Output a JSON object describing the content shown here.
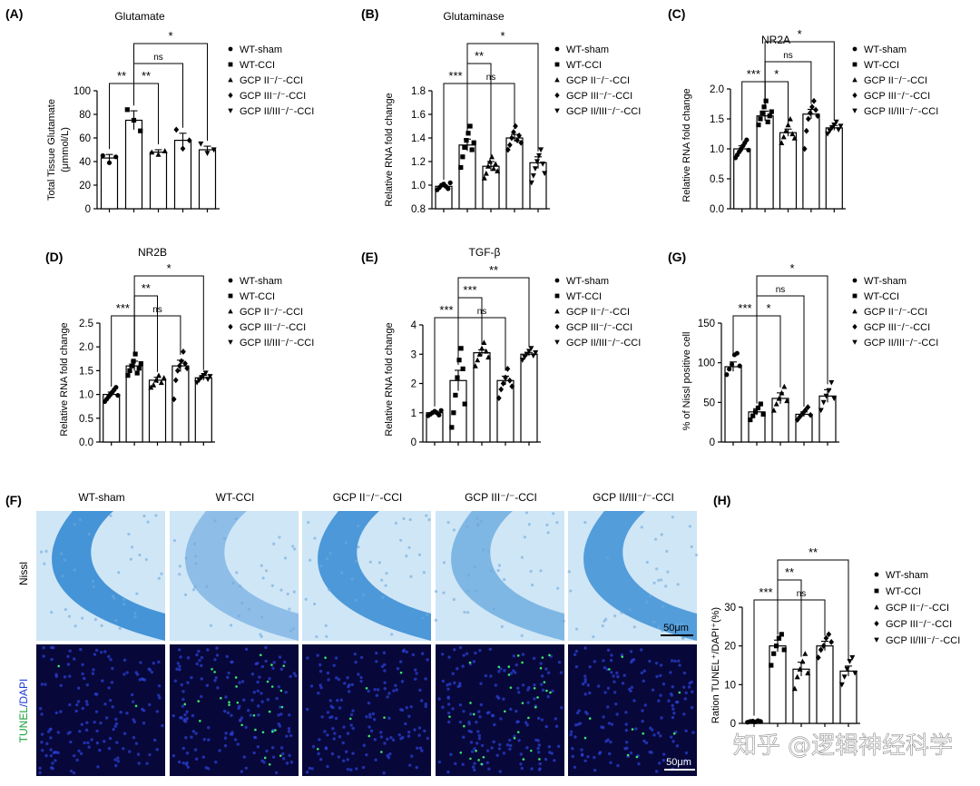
{
  "legend_groups": [
    "WT-sham",
    "WT-CCI",
    "GCP II⁻/⁻-CCI",
    "GCP III⁻/⁻-CCI",
    "GCP II/III⁻/⁻-CCI"
  ],
  "chart_data": [
    {
      "id": "A",
      "panel_label": "(A)",
      "type": "bar",
      "title": "Glutamate",
      "ylabel": "Total Tissue Glutamate",
      "ylabel2": "(μmmol/L)",
      "ylim": [
        0,
        100
      ],
      "yticks": [
        0,
        20,
        40,
        60,
        80,
        100
      ],
      "tick_decimals": 0,
      "categories": [
        "WT-sham",
        "WT-CCI",
        "GCP II-/--CCI",
        "GCP III-/--CCI",
        "GCP II/III-/--CCI"
      ],
      "values": [
        43,
        75,
        48,
        58,
        50
      ],
      "errors": [
        3,
        8,
        2,
        6,
        3
      ],
      "points": [
        [
          45,
          39,
          44
        ],
        [
          84,
          75,
          66
        ],
        [
          48,
          46,
          49
        ],
        [
          67,
          51,
          58
        ],
        [
          55,
          47,
          50
        ]
      ],
      "sig": [
        {
          "from": 0,
          "to": 1,
          "label": "**",
          "level": 0
        },
        {
          "from": 1,
          "to": 2,
          "label": "**",
          "level": 0
        },
        {
          "from": 1,
          "to": 3,
          "label": "ns",
          "level": 1
        },
        {
          "from": 1,
          "to": 4,
          "label": "*",
          "level": 2
        }
      ]
    },
    {
      "id": "B",
      "panel_label": "(B)",
      "type": "bar",
      "title": "Glutaminase",
      "ylabel": "Relative RNA fold change",
      "ylim": [
        0.8,
        1.8
      ],
      "yticks": [
        0.8,
        1.0,
        1.2,
        1.4,
        1.6,
        1.8
      ],
      "tick_decimals": 1,
      "categories": [
        "WT-sham",
        "WT-CCI",
        "GCP II-/--CCI",
        "GCP III-/--CCI",
        "GCP II/III-/--CCI"
      ],
      "values": [
        0.99,
        1.34,
        1.16,
        1.4,
        1.19
      ],
      "errors": [
        0.01,
        0.05,
        0.04,
        0.03,
        0.05
      ],
      "points": [
        [
          0.96,
          0.98,
          1.0,
          1.01,
          0.99,
          0.97,
          1.02
        ],
        [
          1.15,
          1.24,
          1.32,
          1.38,
          1.44,
          1.5,
          1.3,
          1.36
        ],
        [
          1.06,
          1.1,
          1.16,
          1.2,
          1.24,
          1.14,
          1.18,
          1.12
        ],
        [
          1.3,
          1.34,
          1.4,
          1.45,
          1.5,
          1.38,
          1.42,
          1.36
        ],
        [
          1.02,
          1.08,
          1.14,
          1.2,
          1.25,
          1.3,
          1.18,
          1.1
        ]
      ],
      "sig": [
        {
          "from": 0,
          "to": 1,
          "label": "***",
          "level": 0
        },
        {
          "from": 1,
          "to": 3,
          "label": "ns",
          "level": 0
        },
        {
          "from": 1,
          "to": 2,
          "label": "**",
          "level": 1
        },
        {
          "from": 1,
          "to": 4,
          "label": "*",
          "level": 2
        }
      ]
    },
    {
      "id": "C",
      "panel_label": "(C)",
      "type": "bar",
      "title": "NR2A",
      "ylabel": "Relative RNA fold change",
      "ylim": [
        0,
        2.0
      ],
      "yticks": [
        0,
        0.5,
        1.0,
        1.5,
        2.0
      ],
      "tick_decimals": 1,
      "categories": [
        "WT-sham",
        "WT-CCI",
        "GCP II-/--CCI",
        "GCP III-/--CCI",
        "GCP II/III-/--CCI"
      ],
      "values": [
        1.0,
        1.55,
        1.27,
        1.58,
        1.35
      ],
      "errors": [
        0.05,
        0.08,
        0.06,
        0.08,
        0.04
      ],
      "points": [
        [
          0.85,
          0.9,
          0.95,
          1.0,
          1.05,
          1.1,
          1.15,
          0.98
        ],
        [
          1.4,
          1.5,
          1.6,
          1.7,
          1.8,
          1.45,
          1.55,
          1.62
        ],
        [
          1.1,
          1.2,
          1.3,
          1.4,
          1.5,
          1.25,
          1.18
        ],
        [
          1.0,
          1.3,
          1.5,
          1.6,
          1.7,
          1.8,
          1.65,
          1.55
        ],
        [
          1.25,
          1.3,
          1.35,
          1.4,
          1.45,
          1.32,
          1.38
        ]
      ],
      "sig": [
        {
          "from": 0,
          "to": 1,
          "label": "***",
          "level": 0
        },
        {
          "from": 1,
          "to": 2,
          "label": "*",
          "level": 0
        },
        {
          "from": 1,
          "to": 3,
          "label": "ns",
          "level": 1
        },
        {
          "from": 1,
          "to": 4,
          "label": "*",
          "level": 2
        }
      ]
    },
    {
      "id": "D",
      "panel_label": "(D)",
      "type": "bar",
      "title": "NR2B",
      "ylabel": "Relative RNA fold change",
      "ylim": [
        0,
        2.5
      ],
      "yticks": [
        0,
        0.5,
        1.0,
        1.5,
        2.0,
        2.5
      ],
      "tick_decimals": 1,
      "categories": [
        "WT-sham",
        "WT-CCI",
        "GCP II-/--CCI",
        "GCP III-/--CCI",
        "GCP II/III-/--CCI"
      ],
      "values": [
        1.0,
        1.6,
        1.3,
        1.6,
        1.35
      ],
      "errors": [
        0.05,
        0.1,
        0.06,
        0.12,
        0.05
      ],
      "points": [
        [
          0.85,
          0.9,
          0.95,
          1.0,
          1.05,
          1.1,
          1.15,
          0.98
        ],
        [
          1.4,
          1.5,
          1.6,
          1.7,
          1.85,
          1.45,
          1.55,
          1.65
        ],
        [
          1.15,
          1.2,
          1.3,
          1.4,
          1.25,
          1.35
        ],
        [
          0.9,
          1.3,
          1.5,
          1.6,
          1.7,
          1.9,
          1.65,
          1.55
        ],
        [
          1.25,
          1.3,
          1.35,
          1.4,
          1.45,
          1.32,
          1.38
        ]
      ],
      "sig": [
        {
          "from": 0,
          "to": 1,
          "label": "***",
          "level": 0
        },
        {
          "from": 1,
          "to": 3,
          "label": "ns",
          "level": 0
        },
        {
          "from": 1,
          "to": 2,
          "label": "**",
          "level": 1
        },
        {
          "from": 1,
          "to": 4,
          "label": "*",
          "level": 2
        }
      ]
    },
    {
      "id": "E",
      "panel_label": "(E)",
      "type": "bar",
      "title": "TGF-β",
      "ylabel": "Relative RNA fold change",
      "ylim": [
        0,
        4
      ],
      "yticks": [
        0,
        1,
        2,
        3,
        4
      ],
      "tick_decimals": 0,
      "categories": [
        "WT-sham",
        "WT-CCI",
        "GCP II-/--CCI",
        "GCP III-/--CCI",
        "GCP II/III-/--CCI"
      ],
      "values": [
        1.0,
        2.1,
        3.05,
        2.1,
        3.0
      ],
      "errors": [
        0.03,
        0.35,
        0.1,
        0.15,
        0.06
      ],
      "points": [
        [
          0.9,
          0.95,
          1.0,
          1.05,
          1.0,
          0.92,
          1.08
        ],
        [
          0.5,
          1.0,
          1.6,
          2.2,
          2.8,
          3.2,
          2.5,
          1.3
        ],
        [
          2.6,
          2.8,
          3.0,
          3.2,
          3.4,
          3.1,
          2.9
        ],
        [
          1.5,
          1.8,
          2.0,
          2.2,
          2.5,
          2.1,
          1.9
        ],
        [
          2.8,
          2.9,
          3.0,
          3.1,
          3.2,
          2.95,
          3.05
        ]
      ],
      "sig": [
        {
          "from": 0,
          "to": 1,
          "label": "***",
          "level": 0
        },
        {
          "from": 1,
          "to": 3,
          "label": "ns",
          "level": 0
        },
        {
          "from": 1,
          "to": 2,
          "label": "***",
          "level": 1
        },
        {
          "from": 1,
          "to": 4,
          "label": "**",
          "level": 2
        }
      ]
    },
    {
      "id": "G",
      "panel_label": "(G)",
      "type": "bar",
      "title": "",
      "ylabel": "% of Nissl positive cell",
      "ylim": [
        0,
        150
      ],
      "yticks": [
        0,
        50,
        100,
        150
      ],
      "tick_decimals": 0,
      "categories": [
        "WT-sham",
        "WT-CCI",
        "GCP II-/--CCI",
        "GCP III-/--CCI",
        "GCP II/III-/--CCI"
      ],
      "values": [
        95,
        38,
        55,
        35,
        58
      ],
      "errors": [
        6,
        4,
        7,
        3,
        8
      ],
      "points": [
        [
          85,
          92,
          98,
          110,
          112,
          96
        ],
        [
          28,
          33,
          38,
          43,
          48,
          35
        ],
        [
          40,
          48,
          55,
          62,
          70,
          52
        ],
        [
          28,
          32,
          36,
          40,
          44,
          34
        ],
        [
          40,
          50,
          58,
          65,
          75,
          55
        ]
      ],
      "sig": [
        {
          "from": 0,
          "to": 1,
          "label": "***",
          "level": 0
        },
        {
          "from": 1,
          "to": 2,
          "label": "*",
          "level": 0
        },
        {
          "from": 1,
          "to": 3,
          "label": "ns",
          "level": 1
        },
        {
          "from": 1,
          "to": 4,
          "label": "*",
          "level": 2
        }
      ]
    },
    {
      "id": "H",
      "panel_label": "(H)",
      "type": "bar",
      "title": "",
      "ylabel": "Ration TUNEL⁺/DAPI⁺(%)",
      "ylim": [
        0,
        30
      ],
      "yticks": [
        0,
        10,
        20,
        30
      ],
      "tick_decimals": 0,
      "categories": [
        "WT-sham",
        "WT-CCI",
        "GCP II-/--CCI",
        "GCP III-/--CCI",
        "GCP II/III-/--CCI"
      ],
      "values": [
        0.5,
        20,
        14,
        20,
        13.5
      ],
      "errors": [
        0.1,
        1.5,
        1.8,
        1.2,
        1.3
      ],
      "points": [
        [
          0.3,
          0.5,
          0.6,
          0.4,
          0.7,
          0.5
        ],
        [
          15,
          18,
          20,
          22,
          23,
          19
        ],
        [
          9,
          12,
          14,
          16,
          18,
          13
        ],
        [
          17,
          19,
          20,
          22,
          23,
          21
        ],
        [
          10,
          12,
          14,
          16,
          17,
          13
        ]
      ],
      "sig": [
        {
          "from": 0,
          "to": 1,
          "label": "***",
          "level": 0
        },
        {
          "from": 1,
          "to": 3,
          "label": "ns",
          "level": 0
        },
        {
          "from": 1,
          "to": 2,
          "label": "**",
          "level": 1
        },
        {
          "from": 1,
          "to": 4,
          "label": "**",
          "level": 2
        }
      ]
    }
  ],
  "micrographs": {
    "panel_label": "(F)",
    "columns": [
      "WT-sham",
      "WT-CCI",
      "GCP II⁻/⁻-CCI",
      "GCP III⁻/⁻-CCI",
      "GCP II/III⁻/⁻-CCI"
    ],
    "row_nissl": "Nissl",
    "row_tunel_a": "TUNEL",
    "row_tunel_b": "/DAPI",
    "scale_label": "50μm",
    "colors": {
      "nissl_bg": "#cfe6f6",
      "nissl_band": "#3d8fd6",
      "dapi_bg": "#07073a",
      "dapi_cell": "#2b3fd0",
      "tunel": "#37e86a",
      "tunel_label": "#1aa13a",
      "dapi_label": "#1e3bd6"
    }
  },
  "watermark": "知乎 @逻辑神经科学"
}
